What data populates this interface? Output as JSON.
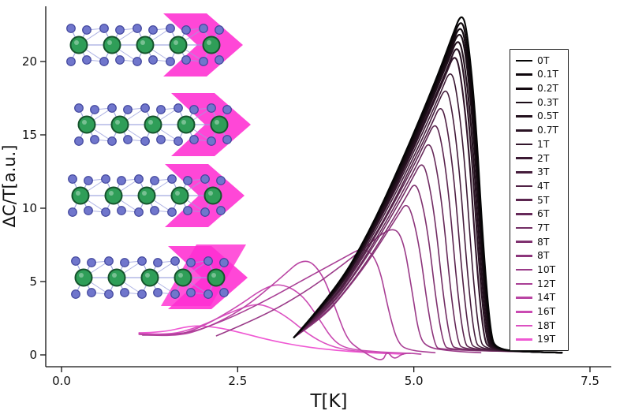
{
  "chart_data": {
    "type": "line",
    "title": "",
    "xlabel": "T[K]",
    "ylabel": "ΔC/T[a.u.]",
    "xlim": [
      -0.2,
      7.6
    ],
    "ylim": [
      -0.8,
      24.2
    ],
    "grid": false,
    "legend_position": "right",
    "xticks": [
      {
        "value": 0,
        "label": "0.0"
      },
      {
        "value": 2.5,
        "label": "2.5"
      },
      {
        "value": 5,
        "label": "5.0"
      },
      {
        "value": 7.5,
        "label": "7.5"
      }
    ],
    "yticks": [
      {
        "value": 0,
        "label": "0"
      },
      {
        "value": 5,
        "label": "5"
      },
      {
        "value": 10,
        "label": "10"
      },
      {
        "value": 15,
        "label": "15"
      },
      {
        "value": 20,
        "label": "20"
      }
    ],
    "series": [
      {
        "name": "0T",
        "color": "#050505",
        "points": [
          [
            3.3,
            1.2
          ],
          [
            3.89,
            4.4
          ],
          [
            4.37,
            8.4
          ],
          [
            4.84,
            13.3
          ],
          [
            5.32,
            18.8
          ],
          [
            5.55,
            21.8
          ],
          [
            5.67,
            23.3
          ],
          [
            5.75,
            22.4
          ],
          [
            5.87,
            16.8
          ],
          [
            5.99,
            7.0
          ],
          [
            6.09,
            1.4
          ],
          [
            6.17,
            0.35
          ],
          [
            6.7,
            0.2
          ],
          [
            7.1,
            0.15
          ]
        ]
      },
      {
        "name": "0.1T",
        "color": "#0d060b",
        "points": [
          [
            3.3,
            1.2
          ],
          [
            3.89,
            4.3
          ],
          [
            4.36,
            8.3
          ],
          [
            4.83,
            13.1
          ],
          [
            5.31,
            18.5
          ],
          [
            5.54,
            21.4
          ],
          [
            5.66,
            22.9
          ],
          [
            5.74,
            22.0
          ],
          [
            5.86,
            16.5
          ],
          [
            5.98,
            6.9
          ],
          [
            6.08,
            1.4
          ],
          [
            6.16,
            0.35
          ],
          [
            6.7,
            0.2
          ],
          [
            7.1,
            0.15
          ]
        ]
      },
      {
        "name": "0.2T",
        "color": "#140a11",
        "points": [
          [
            3.3,
            1.2
          ],
          [
            3.89,
            4.3
          ],
          [
            4.36,
            8.2
          ],
          [
            4.83,
            12.9
          ],
          [
            5.3,
            18.2
          ],
          [
            5.53,
            21.0
          ],
          [
            5.65,
            22.5
          ],
          [
            5.73,
            21.6
          ],
          [
            5.85,
            16.2
          ],
          [
            5.97,
            6.8
          ],
          [
            6.07,
            1.35
          ],
          [
            6.15,
            0.35
          ],
          [
            6.7,
            0.2
          ],
          [
            7.1,
            0.15
          ]
        ]
      },
      {
        "name": "0.3T",
        "color": "#1b0d17",
        "points": [
          [
            3.3,
            1.2
          ],
          [
            3.89,
            4.2
          ],
          [
            4.35,
            8.0
          ],
          [
            4.82,
            12.6
          ],
          [
            5.29,
            17.9
          ],
          [
            5.52,
            20.7
          ],
          [
            5.64,
            22.1
          ],
          [
            5.72,
            21.2
          ],
          [
            5.84,
            15.9
          ],
          [
            5.96,
            6.6
          ],
          [
            6.06,
            1.3
          ],
          [
            6.14,
            0.35
          ],
          [
            6.7,
            0.2
          ],
          [
            7.1,
            0.15
          ]
        ]
      },
      {
        "name": "0.5T",
        "color": "#22101d",
        "points": [
          [
            3.3,
            1.2
          ],
          [
            3.88,
            4.1
          ],
          [
            4.34,
            7.9
          ],
          [
            4.81,
            12.4
          ],
          [
            5.27,
            17.5
          ],
          [
            5.5,
            20.2
          ],
          [
            5.62,
            21.6
          ],
          [
            5.7,
            20.7
          ],
          [
            5.82,
            15.6
          ],
          [
            5.94,
            6.5
          ],
          [
            6.04,
            1.3
          ],
          [
            6.12,
            0.35
          ],
          [
            6.7,
            0.2
          ],
          [
            7.1,
            0.15
          ]
        ]
      },
      {
        "name": "0.7T",
        "color": "#2a1324",
        "points": [
          [
            3.3,
            1.2
          ],
          [
            3.88,
            4.1
          ],
          [
            4.34,
            7.7
          ],
          [
            4.8,
            12.1
          ],
          [
            5.26,
            17.1
          ],
          [
            5.49,
            19.7
          ],
          [
            5.6,
            21.1
          ],
          [
            5.68,
            20.3
          ],
          [
            5.8,
            15.2
          ],
          [
            5.92,
            6.3
          ],
          [
            6.02,
            1.25
          ],
          [
            6.1,
            0.35
          ],
          [
            6.7,
            0.2
          ],
          [
            7.1,
            0.15
          ]
        ]
      },
      {
        "name": "1T",
        "color": "#32162b",
        "points": [
          [
            3.3,
            1.2
          ],
          [
            3.87,
            4.0
          ],
          [
            4.32,
            7.5
          ],
          [
            4.78,
            11.8
          ],
          [
            5.23,
            16.6
          ],
          [
            5.46,
            19.2
          ],
          [
            5.57,
            20.5
          ],
          [
            5.65,
            19.7
          ],
          [
            5.77,
            14.8
          ],
          [
            5.89,
            6.2
          ],
          [
            5.99,
            1.2
          ],
          [
            6.07,
            0.35
          ],
          [
            6.7,
            0.2
          ],
          [
            7.1,
            0.15
          ]
        ]
      },
      {
        "name": "2T",
        "color": "#3b1933",
        "points": [
          [
            3.3,
            1.2
          ],
          [
            3.85,
            3.8
          ],
          [
            4.29,
            7.2
          ],
          [
            4.74,
            11.2
          ],
          [
            5.18,
            15.7
          ],
          [
            5.4,
            18.1
          ],
          [
            5.51,
            19.4
          ],
          [
            5.59,
            18.6
          ],
          [
            5.71,
            14.0
          ],
          [
            5.83,
            5.8
          ],
          [
            5.93,
            1.15
          ],
          [
            6.01,
            0.35
          ],
          [
            6.7,
            0.2
          ],
          [
            7.1,
            0.15
          ]
        ]
      },
      {
        "name": "3T",
        "color": "#451d3c",
        "points": [
          [
            3.3,
            1.2
          ],
          [
            3.84,
            3.6
          ],
          [
            4.26,
            6.8
          ],
          [
            4.69,
            10.5
          ],
          [
            5.12,
            14.7
          ],
          [
            5.33,
            17.0
          ],
          [
            5.44,
            18.2
          ],
          [
            5.52,
            17.5
          ],
          [
            5.64,
            13.1
          ],
          [
            5.76,
            5.5
          ],
          [
            5.86,
            1.1
          ],
          [
            5.94,
            0.35
          ],
          [
            6.7,
            0.2
          ],
          [
            7.1,
            0.15
          ]
        ]
      },
      {
        "name": "4T",
        "color": "#502145",
        "points": [
          [
            3.3,
            1.2
          ],
          [
            3.82,
            3.5
          ],
          [
            4.23,
            6.4
          ],
          [
            4.65,
            9.8
          ],
          [
            5.06,
            13.8
          ],
          [
            5.27,
            15.9
          ],
          [
            5.37,
            17.0
          ],
          [
            5.45,
            16.3
          ],
          [
            5.57,
            12.2
          ],
          [
            5.69,
            5.1
          ],
          [
            5.79,
            1.0
          ],
          [
            5.87,
            0.35
          ],
          [
            6.7,
            0.2
          ],
          [
            7.1,
            0.15
          ]
        ]
      },
      {
        "name": "5T",
        "color": "#5b254f",
        "points": [
          [
            3.3,
            1.2
          ],
          [
            3.8,
            3.3
          ],
          [
            4.2,
            6.0
          ],
          [
            4.59,
            9.2
          ],
          [
            4.99,
            12.8
          ],
          [
            5.19,
            14.8
          ],
          [
            5.29,
            15.8
          ],
          [
            5.37,
            15.2
          ],
          [
            5.49,
            11.4
          ],
          [
            5.61,
            4.7
          ],
          [
            5.71,
            0.95
          ],
          [
            5.79,
            0.35
          ],
          [
            6.7,
            0.2
          ],
          [
            7.1,
            0.15
          ]
        ]
      },
      {
        "name": "6T",
        "color": "#662959",
        "points": [
          [
            3.3,
            1.2
          ],
          [
            3.78,
            3.1
          ],
          [
            4.16,
            5.5
          ],
          [
            4.54,
            8.5
          ],
          [
            4.92,
            11.8
          ],
          [
            5.11,
            13.6
          ],
          [
            5.2,
            14.5
          ],
          [
            5.28,
            13.9
          ],
          [
            5.4,
            10.4
          ],
          [
            5.52,
            4.4
          ],
          [
            5.62,
            0.9
          ],
          [
            5.7,
            0.35
          ],
          [
            6.7,
            0.2
          ],
          [
            7.1,
            0.15
          ]
        ]
      },
      {
        "name": "7T",
        "color": "#722d64",
        "points": [
          [
            3.3,
            1.2
          ],
          [
            3.75,
            2.9
          ],
          [
            4.11,
            5.1
          ],
          [
            4.47,
            7.7
          ],
          [
            4.83,
            10.7
          ],
          [
            5.01,
            12.3
          ],
          [
            5.1,
            13.1
          ],
          [
            5.18,
            12.6
          ],
          [
            5.3,
            9.4
          ],
          [
            5.42,
            3.9
          ],
          [
            5.52,
            0.8
          ],
          [
            5.6,
            0.35
          ],
          [
            6.7,
            0.2
          ],
          [
            7.1,
            0.15
          ]
        ]
      },
      {
        "name": "8T",
        "color": "#7f316f",
        "points": [
          [
            3.3,
            1.2
          ],
          [
            3.73,
            2.7
          ],
          [
            4.07,
            4.6
          ],
          [
            4.41,
            6.9
          ],
          [
            4.75,
            9.6
          ],
          [
            4.92,
            11.0
          ],
          [
            5.0,
            11.7
          ],
          [
            5.08,
            11.2
          ],
          [
            5.2,
            8.4
          ],
          [
            5.32,
            3.5
          ],
          [
            5.42,
            0.7
          ],
          [
            5.5,
            0.35
          ],
          [
            6.7,
            0.2
          ],
          [
            7.1,
            0.15
          ]
        ]
      },
      {
        "name": "8T",
        "color": "#8c357b",
        "points": [
          [
            3.3,
            1.2
          ],
          [
            3.7,
            2.5
          ],
          [
            4.01,
            4.2
          ],
          [
            4.33,
            6.2
          ],
          [
            4.64,
            8.5
          ],
          [
            4.8,
            9.7
          ],
          [
            4.88,
            10.3
          ],
          [
            4.96,
            9.9
          ],
          [
            5.08,
            7.4
          ],
          [
            5.2,
            3.1
          ],
          [
            5.3,
            0.6
          ],
          [
            5.38,
            0.35
          ],
          [
            6.7,
            0.2
          ],
          [
            7.1,
            0.15
          ]
        ]
      },
      {
        "name": "10T",
        "color": "#9a3a88",
        "points": [
          [
            2.2,
            1.3
          ],
          [
            2.8,
            2.5
          ],
          [
            3.4,
            4.1
          ],
          [
            3.9,
            5.8
          ],
          [
            4.35,
            7.5
          ],
          [
            4.7,
            8.8
          ],
          [
            4.85,
            7.9
          ],
          [
            4.97,
            4.5
          ],
          [
            5.07,
            1.4
          ],
          [
            5.18,
            0.5
          ],
          [
            5.55,
            0.25
          ],
          [
            5.95,
            0.15
          ]
        ]
      },
      {
        "name": "12T",
        "color": "#a93f95",
        "points": [
          [
            1.15,
            1.35
          ],
          [
            1.7,
            1.3
          ],
          [
            2.3,
            2.3
          ],
          [
            2.9,
            3.7
          ],
          [
            3.5,
            5.3
          ],
          [
            4.0,
            6.6
          ],
          [
            4.3,
            7.4
          ],
          [
            4.5,
            6.3
          ],
          [
            4.65,
            2.8
          ],
          [
            4.78,
            0.7
          ],
          [
            4.95,
            0.3
          ],
          [
            5.3,
            0.15
          ]
        ]
      },
      {
        "name": "14T",
        "color": "#b944a3",
        "points": [
          [
            1.1,
            1.4
          ],
          [
            1.6,
            1.2
          ],
          [
            2.1,
            1.9
          ],
          [
            2.6,
            3.2
          ],
          [
            3.1,
            5.2
          ],
          [
            3.45,
            6.7
          ],
          [
            3.7,
            5.6
          ],
          [
            3.9,
            3.0
          ],
          [
            4.05,
            1.1
          ],
          [
            4.2,
            0.45
          ],
          [
            4.55,
            -0.55
          ],
          [
            4.62,
            0.3
          ],
          [
            4.72,
            -0.35
          ],
          [
            4.85,
            0.15
          ],
          [
            5.1,
            0.05
          ]
        ]
      },
      {
        "name": "16T",
        "color": "#ca4ab2",
        "points": [
          [
            1.1,
            1.45
          ],
          [
            1.55,
            1.2
          ],
          [
            2.0,
            1.9
          ],
          [
            2.5,
            3.3
          ],
          [
            2.85,
            4.5
          ],
          [
            3.1,
            4.9
          ],
          [
            3.4,
            4.2
          ],
          [
            3.65,
            2.5
          ],
          [
            3.85,
            1.0
          ],
          [
            4.05,
            0.4
          ],
          [
            4.5,
            0.2
          ],
          [
            4.95,
            0.1
          ]
        ]
      },
      {
        "name": "18T",
        "color": "#dc51c2",
        "points": [
          [
            1.1,
            1.5
          ],
          [
            1.5,
            1.3
          ],
          [
            1.95,
            1.9
          ],
          [
            2.35,
            2.8
          ],
          [
            2.7,
            3.45
          ],
          [
            2.9,
            3.4
          ],
          [
            3.2,
            2.6
          ],
          [
            3.5,
            1.4
          ],
          [
            3.8,
            0.6
          ],
          [
            4.15,
            0.25
          ],
          [
            4.6,
            0.1
          ]
        ]
      },
      {
        "name": "19T",
        "color": "#ef58d3",
        "points": [
          [
            1.1,
            1.5
          ],
          [
            1.45,
            1.55
          ],
          [
            1.75,
            1.9
          ],
          [
            1.95,
            2.0
          ],
          [
            2.25,
            1.85
          ],
          [
            2.6,
            1.45
          ],
          [
            3.0,
            0.95
          ],
          [
            3.45,
            0.55
          ],
          [
            3.9,
            0.3
          ],
          [
            4.35,
            0.15
          ],
          [
            4.85,
            0.05
          ]
        ]
      }
    ]
  },
  "inset": {
    "rows": 4,
    "colors": {
      "atom_green": "#2f9e58",
      "atom_green_edge": "#15532c",
      "atom_blue": "#7076cc",
      "atom_blue_edge": "#3f449b",
      "bond": "#9aa0dd",
      "highlight": "#ff2ed2"
    }
  }
}
